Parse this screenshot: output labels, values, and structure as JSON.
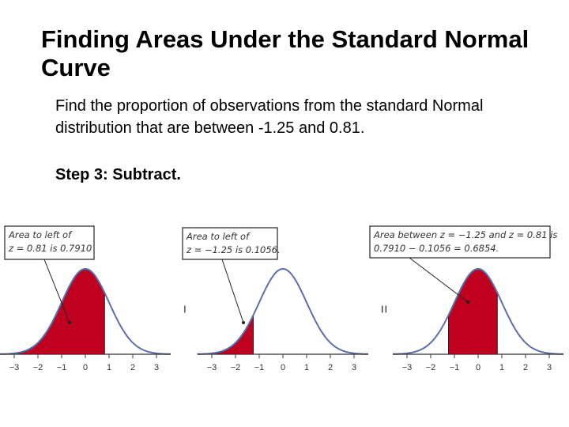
{
  "slide": {
    "title": "Finding Areas Under the Standard Normal Curve",
    "paragraph": "Find the proportion of observations from the standard Normal distribution that are between -1.25 and 0.81.",
    "step": "Step 3: Subtract."
  },
  "panels": [
    {
      "callout_lines": [
        "Area to left of",
        "z = 0.81 is 0.7910"
      ],
      "shade_from": -3.6,
      "shade_to": 0.81
    },
    {
      "callout_lines": [
        "Area to left of",
        "z = −1.25 is 0.1056."
      ],
      "shade_from": -3.6,
      "shade_to": -1.25
    },
    {
      "callout_lines": [
        "Area between z = −1.25 and z = 0.81 is",
        "0.7910 − 0.1056 = 0.6854."
      ],
      "shade_from": -1.25,
      "shade_to": 0.81
    }
  ],
  "tick_labels": [
    "−3",
    "−2",
    "−1",
    "0",
    "1",
    "2",
    "3"
  ],
  "operators": [
    "−",
    "="
  ],
  "colors": {
    "shade": "#c0001f",
    "curve": "#5a6fb0",
    "axis": "#333333"
  }
}
